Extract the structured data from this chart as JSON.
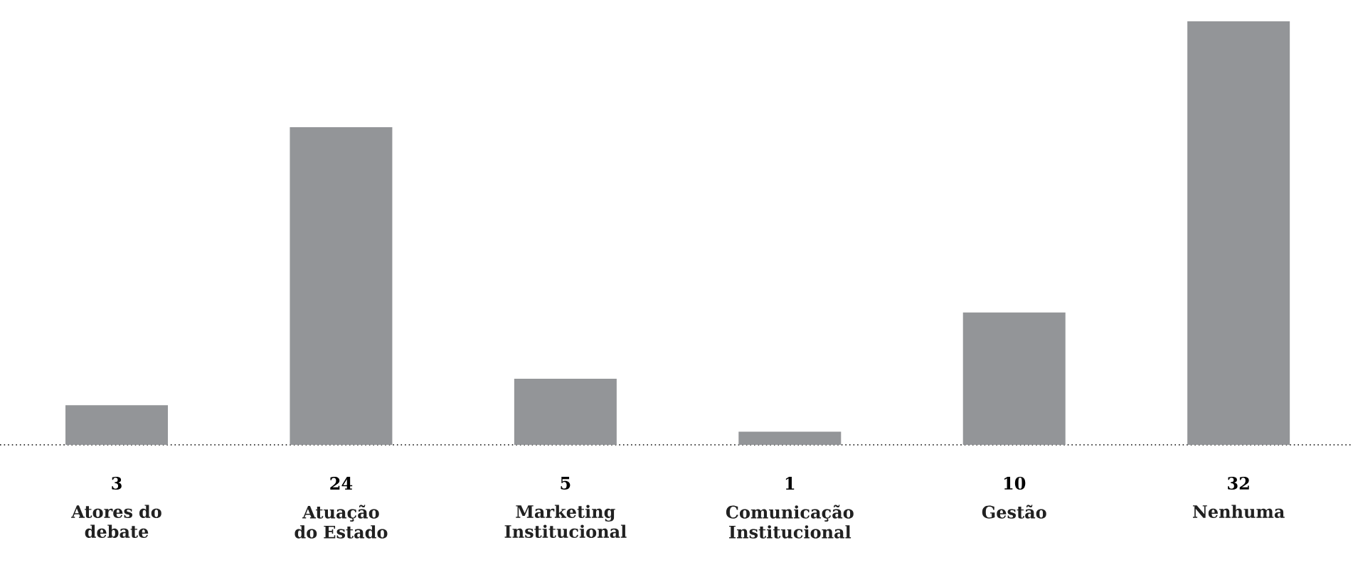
{
  "chart_data": {
    "type": "bar",
    "categories": [
      "Atores do debate",
      "Atuação do Estado",
      "Marketing Institucional",
      "Comunicação Institucional",
      "Gestão",
      "Nenhuma"
    ],
    "values": [
      3,
      24,
      5,
      1,
      10,
      32
    ],
    "color": "#939598",
    "data_labels": true
  }
}
